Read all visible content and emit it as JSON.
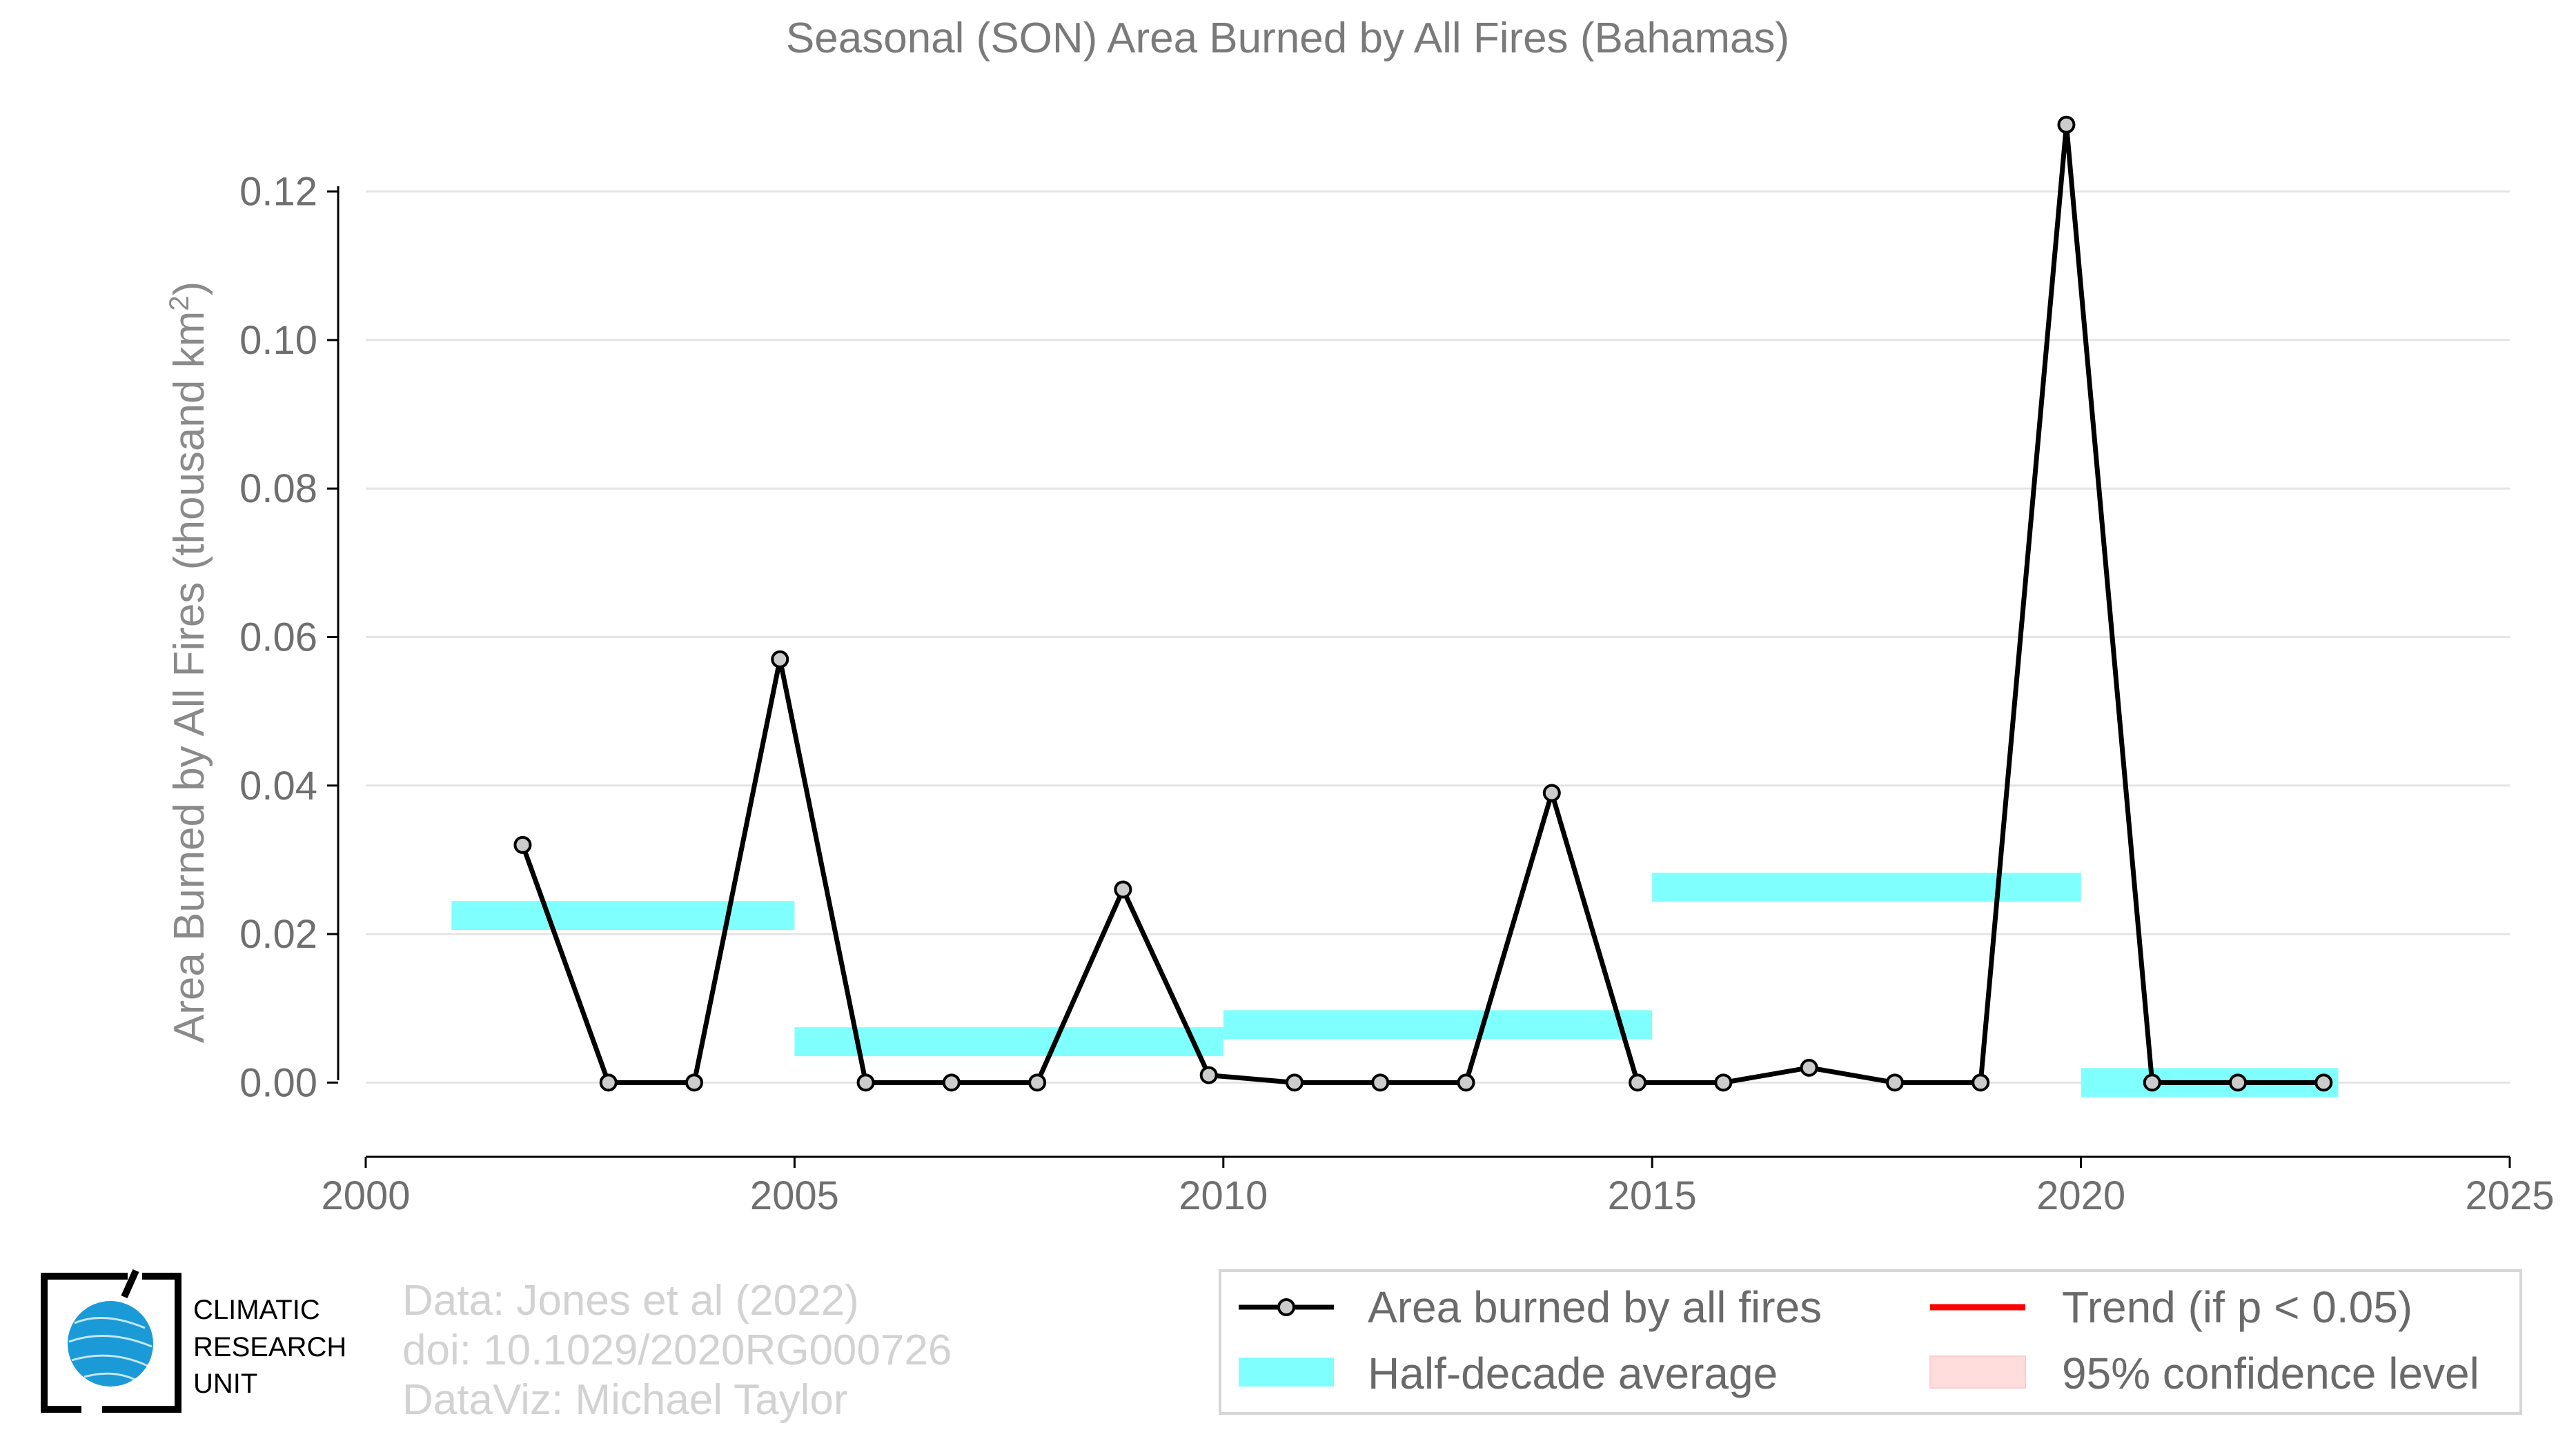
{
  "chart_data": {
    "type": "line",
    "title": "Seasonal (SON) Area Burned by All Fires (Bahamas)",
    "ylabel_main": "Area Burned by All Fires (thousand km",
    "ylabel_sup": "2",
    "ylabel_close": ")",
    "xlim": [
      2000,
      2025
    ],
    "ylim": [
      -0.01,
      0.13
    ],
    "x_ticks": [
      2000,
      2005,
      2010,
      2015,
      2020,
      2025
    ],
    "y_ticks": [
      0.0,
      0.02,
      0.04,
      0.06,
      0.08,
      0.1,
      0.12
    ],
    "y_tick_labels": [
      "0.00",
      "0.02",
      "0.04",
      "0.06",
      "0.08",
      "0.10",
      "0.12"
    ],
    "grid": "horizontal",
    "series": [
      {
        "name": "Area burned by all fires",
        "color": "#000000",
        "marker_fill": "#cccccc",
        "x": [
          2001.83,
          2002.83,
          2003.83,
          2004.83,
          2005.83,
          2006.83,
          2007.83,
          2008.83,
          2009.83,
          2010.83,
          2011.83,
          2012.83,
          2013.83,
          2014.83,
          2015.83,
          2016.83,
          2017.83,
          2018.83,
          2019.83,
          2020.83,
          2021.83,
          2022.83
        ],
        "y": [
          0.032,
          0.0,
          0.0,
          0.057,
          0.0,
          0.0,
          0.0,
          0.026,
          0.001,
          0.0,
          0.0,
          0.0,
          0.039,
          0.0,
          0.0,
          0.002,
          0.0,
          0.0,
          0.129,
          0.0,
          0.0,
          0.0
        ]
      }
    ],
    "half_decade_average": {
      "name": "Half-decade average",
      "color": "#80ffff",
      "segments": [
        {
          "x0": 2001,
          "x1": 2005,
          "y": 0.0225
        },
        {
          "x0": 2005,
          "x1": 2010,
          "y": 0.0055
        },
        {
          "x0": 2010,
          "x1": 2015,
          "y": 0.0078
        },
        {
          "x0": 2015,
          "x1": 2020,
          "y": 0.0263
        },
        {
          "x0": 2020,
          "x1": 2023,
          "y": 0.0
        }
      ]
    },
    "legend": {
      "placement": "bottom-right",
      "items": [
        {
          "label": "Area burned by all fires",
          "kind": "line-marker",
          "color": "#000000"
        },
        {
          "label": "Trend (if p < 0.05)",
          "kind": "line",
          "color": "#ff0000"
        },
        {
          "label": "Half-decade average",
          "kind": "band",
          "color": "#80ffff"
        },
        {
          "label": "95% confidence level",
          "kind": "band",
          "color": "#ffdddd"
        }
      ]
    }
  },
  "credits": {
    "line1": "Data: Jones et al (2022)",
    "line2": "doi: 10.1029/2020RG000726",
    "line3": "DataViz: Michael Taylor"
  },
  "logo": {
    "line1": "CLIMATIC",
    "line2": "RESEARCH",
    "line3": "UNIT",
    "color": "#1a9ad6"
  }
}
